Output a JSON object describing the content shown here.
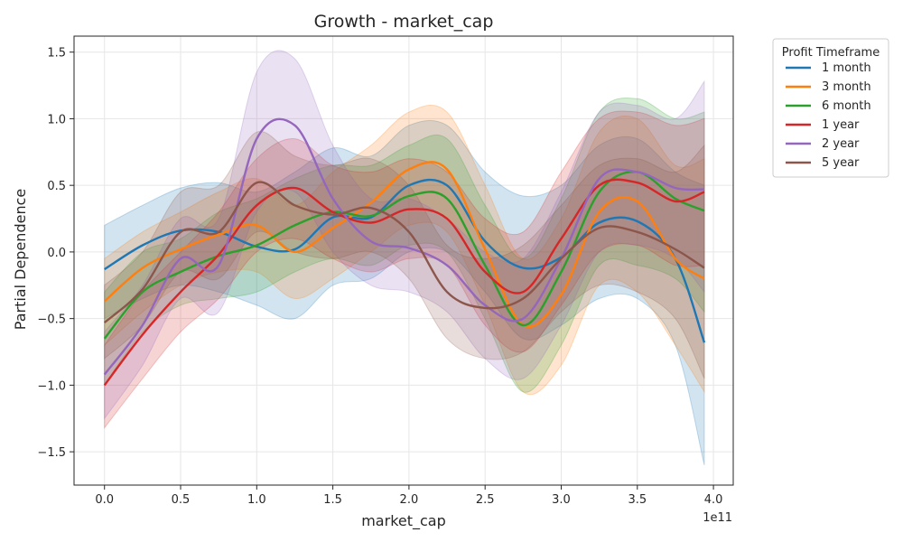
{
  "chart_data": {
    "type": "line",
    "title": "Growth - market_cap",
    "xlabel": "market_cap",
    "ylabel": "Partial Dependence",
    "x_offset_label": "1e11",
    "xlim": [
      -0.2,
      4.13
    ],
    "ylim": [
      -1.75,
      1.62
    ],
    "x_scale_multiplier": "1e11",
    "xticks": [
      0.0,
      0.5,
      1.0,
      1.5,
      2.0,
      2.5,
      3.0,
      3.5,
      4.0
    ],
    "xtick_labels": [
      "0.0",
      "0.5",
      "1.0",
      "1.5",
      "2.0",
      "2.5",
      "3.0",
      "3.5",
      "4.0"
    ],
    "yticks": [
      -1.5,
      -1.0,
      -0.5,
      0.0,
      0.5,
      1.0,
      1.5
    ],
    "ytick_labels": [
      "−1.5",
      "−1.0",
      "−0.5",
      "0.0",
      "0.5",
      "1.0",
      "1.5"
    ],
    "grid": true,
    "legend": {
      "title": "Profit Timeframe",
      "placement": "outside-top-right"
    },
    "x": [
      0.0,
      0.25,
      0.5,
      0.75,
      1.0,
      1.25,
      1.5,
      1.75,
      2.0,
      2.25,
      2.5,
      2.75,
      3.0,
      3.25,
      3.5,
      3.75,
      3.94
    ],
    "series": [
      {
        "name": "1 month",
        "color": "#1f77b4",
        "values": [
          -0.13,
          0.05,
          0.16,
          0.15,
          0.04,
          0.02,
          0.26,
          0.26,
          0.5,
          0.5,
          0.08,
          -0.12,
          -0.04,
          0.22,
          0.23,
          -0.05,
          -0.68
        ],
        "lower": [
          -0.5,
          -0.35,
          -0.25,
          -0.3,
          -0.4,
          -0.5,
          -0.25,
          -0.2,
          0.0,
          0.0,
          -0.3,
          -0.65,
          -0.55,
          -0.35,
          -0.35,
          -0.7,
          -1.6
        ],
        "upper": [
          0.2,
          0.35,
          0.48,
          0.52,
          0.45,
          0.6,
          0.78,
          0.72,
          0.95,
          0.95,
          0.6,
          0.42,
          0.5,
          0.8,
          0.85,
          0.6,
          0.5
        ]
      },
      {
        "name": "3 month",
        "color": "#ff7f0e",
        "values": [
          -0.37,
          -0.12,
          0.02,
          0.13,
          0.2,
          0.0,
          0.18,
          0.37,
          0.62,
          0.62,
          0.02,
          -0.55,
          -0.32,
          0.3,
          0.38,
          -0.05,
          -0.2
        ],
        "lower": [
          -0.7,
          -0.45,
          -0.25,
          -0.15,
          -0.15,
          -0.35,
          -0.2,
          0.0,
          0.2,
          0.15,
          -0.4,
          -1.05,
          -0.85,
          -0.25,
          -0.3,
          -0.7,
          -1.05
        ],
        "upper": [
          -0.05,
          0.15,
          0.3,
          0.45,
          0.55,
          0.35,
          0.6,
          0.8,
          1.05,
          1.05,
          0.5,
          -0.05,
          0.25,
          0.9,
          1.0,
          0.65,
          0.7
        ]
      },
      {
        "name": "6 month",
        "color": "#2ca02c",
        "values": [
          -0.65,
          -0.3,
          -0.15,
          -0.03,
          0.05,
          0.2,
          0.3,
          0.27,
          0.42,
          0.4,
          -0.1,
          -0.55,
          -0.15,
          0.45,
          0.6,
          0.4,
          0.31
        ],
        "lower": [
          -1.0,
          -0.6,
          -0.4,
          -0.35,
          -0.3,
          -0.15,
          -0.05,
          -0.1,
          0.05,
          0.0,
          -0.5,
          -1.05,
          -0.7,
          -0.1,
          -0.1,
          -0.2,
          -0.45
        ],
        "upper": [
          -0.3,
          0.0,
          0.1,
          0.3,
          0.4,
          0.55,
          0.65,
          0.65,
          0.8,
          0.85,
          0.35,
          -0.05,
          0.4,
          1.05,
          1.15,
          1.0,
          1.05
        ]
      },
      {
        "name": "1 year",
        "color": "#d62728",
        "values": [
          -1.0,
          -0.62,
          -0.3,
          -0.02,
          0.35,
          0.48,
          0.3,
          0.22,
          0.32,
          0.25,
          -0.15,
          -0.3,
          0.1,
          0.5,
          0.52,
          0.38,
          0.45
        ],
        "lower": [
          -1.32,
          -0.95,
          -0.6,
          -0.35,
          0.0,
          0.1,
          -0.05,
          -0.15,
          -0.05,
          -0.1,
          -0.55,
          -0.75,
          -0.4,
          0.0,
          0.05,
          -0.1,
          -0.1
        ],
        "upper": [
          -0.7,
          -0.3,
          0.0,
          0.3,
          0.7,
          0.85,
          0.65,
          0.6,
          0.7,
          0.6,
          0.25,
          0.15,
          0.6,
          1.0,
          1.05,
          0.95,
          1.0
        ]
      },
      {
        "name": "2 year",
        "color": "#9467bd",
        "values": [
          -0.92,
          -0.55,
          -0.05,
          -0.1,
          0.85,
          0.95,
          0.4,
          0.08,
          0.03,
          -0.1,
          -0.4,
          -0.5,
          -0.05,
          0.55,
          0.6,
          0.48,
          0.47
        ],
        "lower": [
          -1.25,
          -0.85,
          -0.35,
          -0.45,
          0.3,
          0.45,
          0.0,
          -0.25,
          -0.3,
          -0.45,
          -0.8,
          -0.95,
          -0.55,
          0.0,
          0.05,
          -0.05,
          -0.3
        ],
        "upper": [
          -0.6,
          -0.25,
          0.25,
          0.25,
          1.35,
          1.45,
          0.8,
          0.4,
          0.4,
          0.25,
          0.0,
          -0.05,
          0.45,
          1.05,
          1.1,
          1.0,
          1.28
        ]
      },
      {
        "name": "5 year",
        "color": "#8c564b",
        "values": [
          -0.53,
          -0.28,
          0.15,
          0.15,
          0.52,
          0.35,
          0.28,
          0.33,
          0.15,
          -0.3,
          -0.42,
          -0.35,
          -0.05,
          0.18,
          0.15,
          0.02,
          -0.12
        ],
        "lower": [
          -0.8,
          -0.55,
          -0.15,
          -0.2,
          0.15,
          0.0,
          -0.05,
          0.0,
          -0.2,
          -0.65,
          -0.8,
          -0.75,
          -0.45,
          -0.25,
          -0.3,
          -0.5,
          -0.95
        ],
        "upper": [
          -0.25,
          0.0,
          0.45,
          0.5,
          0.9,
          0.72,
          0.65,
          0.7,
          0.5,
          0.05,
          -0.05,
          0.05,
          0.35,
          0.65,
          0.7,
          0.6,
          0.8
        ]
      }
    ]
  }
}
